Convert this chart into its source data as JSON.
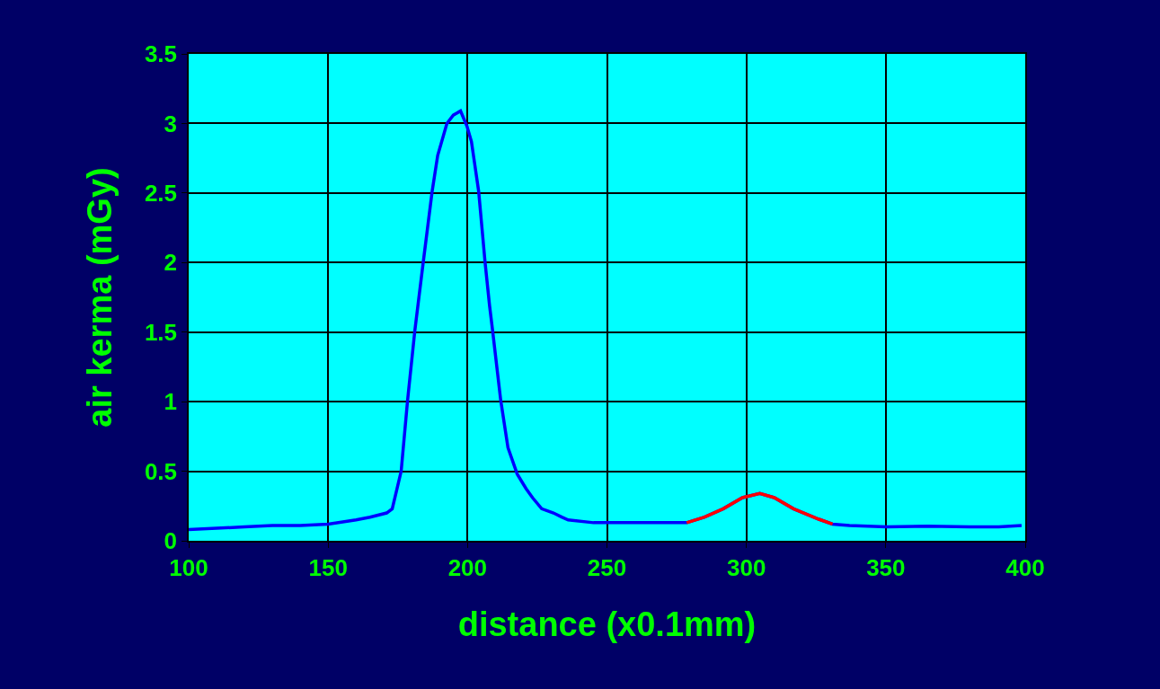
{
  "chart_data": {
    "type": "line",
    "xlabel": "distance (x0.1mm)",
    "ylabel": "air kerma (mGy)",
    "xlim": [
      100,
      400
    ],
    "xticks": [
      100,
      150,
      200,
      250,
      300,
      350,
      400
    ],
    "ylim": [
      0,
      3.5
    ],
    "yticks": [
      0,
      0.5,
      1,
      1.5,
      2,
      2.5,
      3,
      3.5
    ],
    "grid": true,
    "marker": "none",
    "line_style": "solid",
    "series": [
      {
        "color": "#0000ff",
        "x": [
          100,
          110,
          120,
          130,
          140,
          150,
          160,
          165,
          171,
          173,
          176.2,
          178.5,
          181.1,
          184.1,
          187.3,
          189.3,
          192.6,
          194.9,
          197.5,
          199.8,
          201.4,
          204,
          206.3,
          207.9,
          209,
          211.9,
          214.5,
          217.8,
          221,
          223.3,
          226.6,
          230.8,
          233.8,
          236.1,
          245.2,
          255,
          269,
          278.6,
          285,
          291.7,
          298.6,
          304.8,
          310,
          316.9,
          326,
          330.9,
          337,
          350.2,
          365,
          380,
          390.5,
          398.7
        ],
        "values": [
          0.08,
          0.09,
          0.1,
          0.11,
          0.11,
          0.12,
          0.15,
          0.17,
          0.2,
          0.23,
          0.5,
          1.01,
          1.51,
          2.0,
          2.51,
          2.77,
          3.0,
          3.06,
          3.09,
          2.98,
          2.87,
          2.51,
          2.0,
          1.69,
          1.51,
          1.01,
          0.67,
          0.48,
          0.375,
          0.31,
          0.23,
          0.2,
          0.17,
          0.15,
          0.13,
          0.13,
          0.13,
          0.13,
          0.17,
          0.23,
          0.31,
          0.34,
          0.31,
          0.23,
          0.155,
          0.12,
          0.11,
          0.1,
          0.105,
          0.1,
          0.1,
          0.11
        ]
      },
      {
        "color": "#ff0000",
        "x": [
          278.6,
          285,
          291.7,
          298.6,
          304.8,
          310,
          316.9,
          326,
          330.9
        ],
        "values": [
          0.13,
          0.17,
          0.23,
          0.31,
          0.34,
          0.31,
          0.23,
          0.155,
          0.12
        ]
      }
    ]
  }
}
